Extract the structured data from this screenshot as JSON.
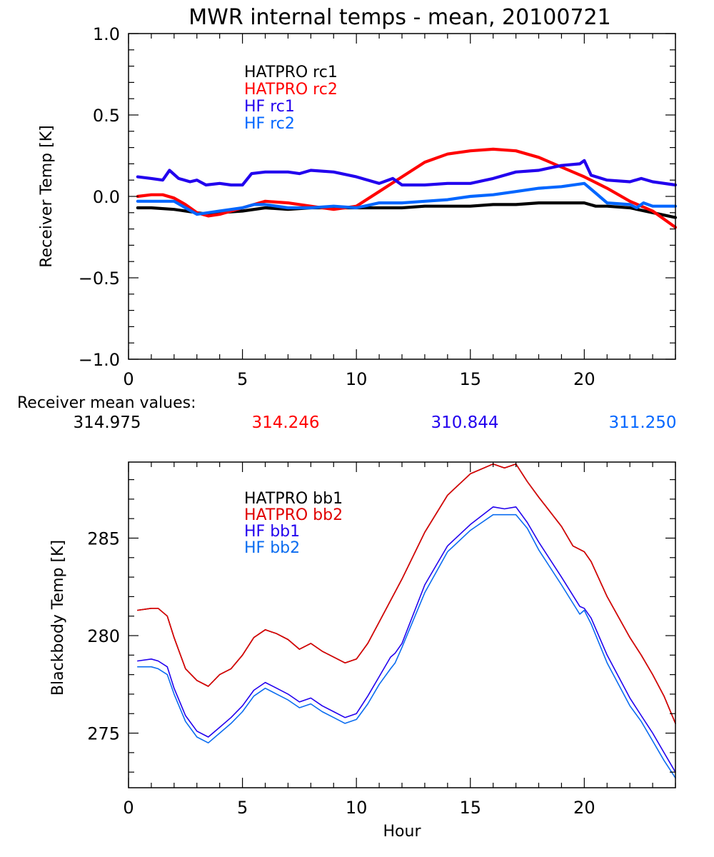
{
  "chart_data": [
    {
      "type": "line",
      "title": "MWR internal temps - mean, 20100721",
      "xlabel": "",
      "ylabel": "Receiver Temp [K]",
      "xlim": [
        0,
        24
      ],
      "ylim": [
        -1.0,
        1.0
      ],
      "xticks": [
        0,
        5,
        10,
        15,
        20
      ],
      "xtick_labels": [
        "0",
        "5",
        "10",
        "15",
        "20"
      ],
      "yticks": [
        -1.0,
        -0.5,
        0.0,
        0.5,
        1.0
      ],
      "ytick_labels": [
        "−1.0",
        "−0.5",
        "0.0",
        "0.5",
        "1.0"
      ],
      "grid": false,
      "legend_position": "top-left-inside",
      "series": [
        {
          "name": "HATPRO rc1",
          "color": "#000000",
          "x": [
            0.4,
            1,
            2,
            3,
            3.5,
            4,
            5,
            6,
            7,
            8,
            9,
            10,
            11,
            12,
            13,
            14,
            15,
            16,
            17,
            18,
            19,
            20,
            20.5,
            21,
            22,
            23,
            24
          ],
          "y": [
            -0.07,
            -0.07,
            -0.08,
            -0.1,
            -0.11,
            -0.1,
            -0.09,
            -0.07,
            -0.08,
            -0.07,
            -0.07,
            -0.07,
            -0.07,
            -0.07,
            -0.06,
            -0.06,
            -0.06,
            -0.05,
            -0.05,
            -0.04,
            -0.04,
            -0.04,
            -0.06,
            -0.06,
            -0.07,
            -0.1,
            -0.13
          ]
        },
        {
          "name": "HATPRO rc2",
          "color": "#ff0000",
          "x": [
            0.4,
            1,
            1.5,
            2,
            2.5,
            3,
            3.5,
            4,
            5,
            6,
            7,
            8,
            9,
            10,
            11,
            12,
            13,
            14,
            15,
            16,
            17,
            18,
            19,
            20,
            21,
            22,
            23,
            24
          ],
          "y": [
            0.0,
            0.01,
            0.01,
            -0.01,
            -0.05,
            -0.1,
            -0.12,
            -0.11,
            -0.07,
            -0.03,
            -0.04,
            -0.06,
            -0.08,
            -0.06,
            0.03,
            0.12,
            0.21,
            0.26,
            0.28,
            0.29,
            0.28,
            0.24,
            0.18,
            0.12,
            0.05,
            -0.03,
            -0.09,
            -0.19
          ]
        },
        {
          "name": "HF rc1",
          "color": "#2200ee",
          "x": [
            0.4,
            1,
            1.5,
            1.8,
            2.2,
            2.7,
            3,
            3.4,
            4,
            4.5,
            5,
            5.4,
            6,
            7,
            7.5,
            8,
            9,
            10,
            11,
            11.6,
            12,
            13,
            14,
            15,
            16,
            17,
            18,
            19,
            19.8,
            20,
            20.3,
            21,
            22,
            22.5,
            23,
            24
          ],
          "y": [
            0.12,
            0.11,
            0.1,
            0.16,
            0.11,
            0.09,
            0.1,
            0.07,
            0.08,
            0.07,
            0.07,
            0.14,
            0.15,
            0.15,
            0.14,
            0.16,
            0.15,
            0.12,
            0.08,
            0.11,
            0.07,
            0.07,
            0.08,
            0.08,
            0.11,
            0.15,
            0.16,
            0.19,
            0.2,
            0.22,
            0.13,
            0.1,
            0.09,
            0.11,
            0.09,
            0.07
          ]
        },
        {
          "name": "HF rc2",
          "color": "#0066ff",
          "x": [
            0.4,
            1,
            2,
            2.5,
            3,
            3.5,
            4,
            5,
            5.5,
            6,
            7,
            8,
            9,
            10,
            11,
            12,
            13,
            14,
            15,
            16,
            17,
            18,
            19,
            20,
            20.5,
            21,
            22,
            22.3,
            22.6,
            23,
            24
          ],
          "y": [
            -0.03,
            -0.03,
            -0.03,
            -0.07,
            -0.11,
            -0.1,
            -0.09,
            -0.07,
            -0.05,
            -0.05,
            -0.07,
            -0.07,
            -0.06,
            -0.07,
            -0.04,
            -0.04,
            -0.03,
            -0.02,
            0.0,
            0.01,
            0.03,
            0.05,
            0.06,
            0.08,
            0.02,
            -0.04,
            -0.05,
            -0.07,
            -0.04,
            -0.06,
            -0.06
          ]
        }
      ],
      "annotations": {
        "label": "Receiver mean values:",
        "values": [
          {
            "text": "314.975",
            "color": "#000000"
          },
          {
            "text": "314.246",
            "color": "#ff0000"
          },
          {
            "text": "310.844",
            "color": "#2200ee"
          },
          {
            "text": "311.250",
            "color": "#0066ff"
          }
        ]
      }
    },
    {
      "type": "line",
      "title": "",
      "xlabel": "Hour",
      "ylabel": "Blackbody Temp [K]",
      "xlim": [
        0,
        24
      ],
      "ylim": [
        272.2,
        288.9
      ],
      "xticks": [
        0,
        5,
        10,
        15,
        20
      ],
      "xtick_labels": [
        "0",
        "5",
        "10",
        "15",
        "20"
      ],
      "yticks": [
        275,
        280,
        285
      ],
      "ytick_labels": [
        "275",
        "280",
        "285"
      ],
      "grid": false,
      "legend_position": "top-left-inside",
      "series": [
        {
          "name": "HATPRO bb1",
          "color": "#000000",
          "x": [
            0.4,
            1,
            1.3,
            1.7,
            2,
            2.5,
            3,
            3.5,
            4,
            4.5,
            5,
            5.5,
            6,
            6.5,
            7,
            7.5,
            8,
            8.5,
            9,
            9.5,
            10,
            10.5,
            11,
            12,
            13,
            14,
            15,
            16,
            16.5,
            17,
            17.5,
            18,
            19,
            19.5,
            20,
            20.3,
            21,
            22,
            22.5,
            23,
            23.5,
            24
          ],
          "y": [
            281.3,
            281.4,
            281.4,
            281.0,
            279.9,
            278.3,
            277.7,
            277.4,
            278.0,
            278.3,
            279.0,
            279.9,
            280.3,
            280.1,
            279.8,
            279.3,
            279.6,
            279.2,
            278.9,
            278.6,
            278.8,
            279.6,
            280.7,
            282.9,
            285.3,
            287.2,
            288.3,
            288.8,
            288.6,
            288.8,
            287.9,
            287.1,
            285.6,
            284.6,
            284.3,
            283.8,
            282.0,
            279.9,
            279.0,
            278.0,
            276.9,
            275.5
          ]
        },
        {
          "name": "HATPRO bb2",
          "color": "#e00000",
          "x": [
            0.4,
            1,
            1.3,
            1.7,
            2,
            2.5,
            3,
            3.5,
            4,
            4.5,
            5,
            5.5,
            6,
            6.5,
            7,
            7.5,
            8,
            8.5,
            9,
            9.5,
            10,
            10.5,
            11,
            12,
            13,
            14,
            15,
            16,
            16.5,
            17,
            17.5,
            18,
            19,
            19.5,
            20,
            20.3,
            21,
            22,
            22.5,
            23,
            23.5,
            24
          ],
          "y": [
            281.3,
            281.4,
            281.4,
            281.0,
            279.9,
            278.3,
            277.7,
            277.4,
            278.0,
            278.3,
            279.0,
            279.9,
            280.3,
            280.1,
            279.8,
            279.3,
            279.6,
            279.2,
            278.9,
            278.6,
            278.8,
            279.6,
            280.7,
            282.9,
            285.3,
            287.2,
            288.3,
            288.8,
            288.6,
            288.8,
            287.9,
            287.1,
            285.6,
            284.6,
            284.3,
            283.8,
            282.0,
            279.9,
            279.0,
            278.0,
            276.9,
            275.5
          ]
        },
        {
          "name": "HF bb1",
          "color": "#2200ee",
          "x": [
            0.4,
            1,
            1.3,
            1.7,
            2,
            2.5,
            3,
            3.5,
            4,
            4.5,
            5,
            5.5,
            6,
            6.5,
            7,
            7.5,
            8,
            8.5,
            9,
            9.5,
            10,
            10.5,
            11,
            11.5,
            11.7,
            12,
            13,
            14,
            15,
            16,
            16.5,
            17,
            17.5,
            18,
            19,
            19.8,
            20,
            20.3,
            21,
            22,
            22.5,
            23,
            23.5,
            24
          ],
          "y": [
            278.7,
            278.8,
            278.7,
            278.4,
            277.3,
            275.9,
            275.1,
            274.8,
            275.3,
            275.8,
            276.4,
            277.2,
            277.6,
            277.3,
            277.0,
            276.6,
            276.8,
            276.4,
            276.1,
            275.8,
            276.0,
            276.9,
            277.9,
            278.9,
            279.1,
            279.6,
            282.6,
            284.6,
            285.7,
            286.6,
            286.5,
            286.6,
            285.8,
            284.8,
            283.0,
            281.5,
            281.4,
            280.9,
            279.0,
            276.8,
            275.9,
            275.0,
            274.0,
            273.0
          ]
        },
        {
          "name": "HF bb2",
          "color": "#0a6cf0",
          "x": [
            0.4,
            1,
            1.3,
            1.7,
            2,
            2.5,
            3,
            3.5,
            4,
            4.5,
            5,
            5.5,
            6,
            6.5,
            7,
            7.5,
            8,
            8.5,
            9,
            9.5,
            10,
            10.5,
            11,
            11.5,
            11.7,
            12,
            13,
            14,
            15,
            16,
            16.5,
            17,
            17.5,
            18,
            19,
            19.8,
            20,
            20.3,
            21,
            22,
            22.5,
            23,
            23.5,
            24
          ],
          "y": [
            278.4,
            278.4,
            278.3,
            278.0,
            277.0,
            275.6,
            274.8,
            274.5,
            275.0,
            275.5,
            276.1,
            276.9,
            277.3,
            277.0,
            276.7,
            276.3,
            276.5,
            276.1,
            275.8,
            275.5,
            275.7,
            276.5,
            277.5,
            278.3,
            278.6,
            279.4,
            282.2,
            284.3,
            285.4,
            286.2,
            286.2,
            286.2,
            285.5,
            284.4,
            282.6,
            281.1,
            281.3,
            280.6,
            278.6,
            276.4,
            275.6,
            274.6,
            273.6,
            272.7
          ]
        }
      ]
    }
  ]
}
